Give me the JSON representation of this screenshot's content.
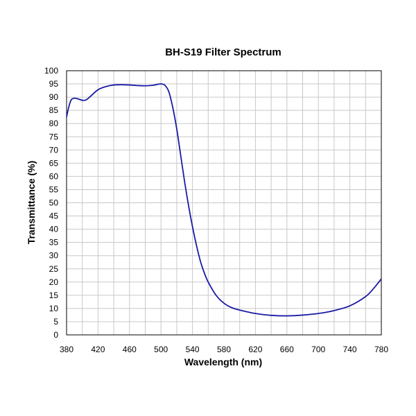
{
  "chart_data": {
    "type": "line",
    "title": "BH-S19 Filter  Spectrum",
    "xlabel": "Wavelength (nm)",
    "ylabel": "Transmittance (%)",
    "xlim": [
      380,
      780
    ],
    "ylim": [
      0,
      100
    ],
    "x_ticks": [
      "380",
      "420",
      "460",
      "500",
      "540",
      "580",
      "620",
      "660",
      "700",
      "740",
      "780"
    ],
    "y_ticks": [
      "0",
      "5",
      "10",
      "15",
      "20",
      "25",
      "30",
      "35",
      "40",
      "45",
      "50",
      "55",
      "60",
      "65",
      "70",
      "75",
      "80",
      "85",
      "90",
      "95",
      "100"
    ],
    "x_minor_step": 20,
    "grid": true,
    "series_color": "#1a1aa6",
    "series": [
      {
        "x": [
          380,
          383,
          386,
          390,
          395,
          400,
          405,
          410,
          420,
          430,
          440,
          450,
          460,
          470,
          480,
          490,
          495,
          500,
          505,
          510,
          515,
          520,
          525,
          530,
          535,
          540,
          545,
          550,
          555,
          560,
          570,
          580,
          590,
          600,
          620,
          640,
          660,
          680,
          700,
          720,
          740,
          760,
          770,
          780
        ],
        "y": [
          82.5,
          86.5,
          89.0,
          89.6,
          89.3,
          88.8,
          89.0,
          90.2,
          92.8,
          94.0,
          94.6,
          94.7,
          94.6,
          94.4,
          94.3,
          94.5,
          94.8,
          95.0,
          94.5,
          92.0,
          86.0,
          78.0,
          68.0,
          58.0,
          49.0,
          41.0,
          34.0,
          28.0,
          23.5,
          20.0,
          15.0,
          12.0,
          10.3,
          9.4,
          8.1,
          7.4,
          7.2,
          7.5,
          8.1,
          9.2,
          11.0,
          14.5,
          17.5,
          21.2
        ]
      }
    ]
  }
}
